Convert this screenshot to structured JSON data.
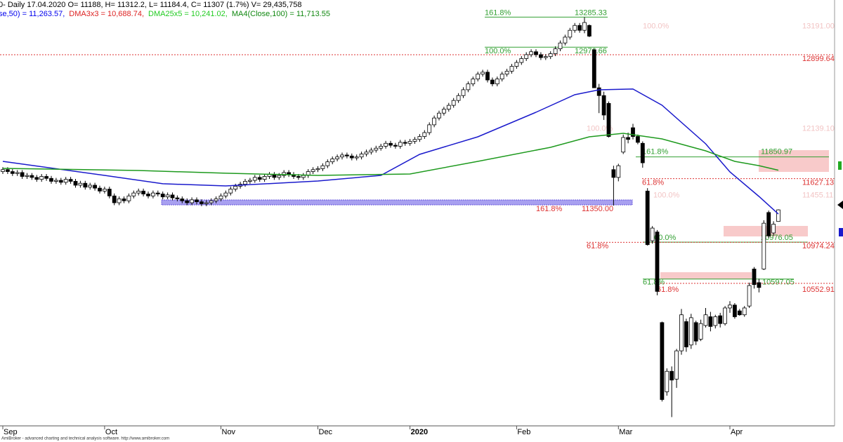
{
  "chart_data": {
    "type": "candlestick",
    "header": "0- Daily 17.04.2020 O= 11188, H= 11312.2, L= 11184.4, C= 11307 (1.7%) V= 29,435,758",
    "indicators": [
      {
        "text": "se,50) = 11,263.57,",
        "color": "#0000ee"
      },
      {
        "text": "DMA3x3 = 10,688.74,",
        "color": "#dd2222"
      },
      {
        "text": "DMA25x5 = 10,241.02,",
        "color": "#22cc22"
      },
      {
        "text": "MA4(Close,100) = 11,713.55",
        "color": "#118811"
      }
    ],
    "footer": "AmiBroker - advanced charting and technical analysis software. http://www.amibroker.com",
    "ylim": [
      9090,
      13461
    ],
    "xlim": [
      -0.6,
      173
    ],
    "xticks": [
      {
        "value": 0,
        "label": "Sep"
      },
      {
        "value": 21,
        "label": "Oct"
      },
      {
        "value": 45,
        "label": "Nov"
      },
      {
        "value": 65,
        "label": "Dec"
      },
      {
        "value": 84,
        "label": "2020"
      },
      {
        "value": 106,
        "label": "Feb"
      },
      {
        "value": 127,
        "label": "Mar"
      },
      {
        "value": 150,
        "label": "Apr"
      }
    ],
    "up_color": "#ffffff",
    "down_color": "#000000",
    "open": [
      11700,
      11720,
      11700,
      11680,
      11690,
      11650,
      11660,
      11640,
      11620,
      11650,
      11630,
      11600,
      11610,
      11590,
      11620,
      11600,
      11560,
      11580,
      11540,
      11560,
      11530,
      11500,
      11520,
      11450,
      11380,
      11420,
      11400,
      11450,
      11480,
      11500,
      11470,
      11450,
      11480,
      11470,
      11440,
      11460,
      11430,
      11420,
      11400,
      11380,
      11410,
      11390,
      11370,
      11380,
      11400,
      11420,
      11450,
      11480,
      11520,
      11550,
      11570,
      11600,
      11610,
      11640,
      11620,
      11650,
      11670,
      11640,
      11660,
      11690,
      11670,
      11650,
      11640,
      11660,
      11700,
      11720,
      11730,
      11760,
      11800,
      11830,
      11850,
      11870,
      11860,
      11840,
      11850,
      11880,
      11900,
      11920,
      11940,
      11960,
      11990,
      11970,
      11960,
      12000,
      11990,
      12010,
      12030,
      12060,
      12100,
      12180,
      12250,
      12300,
      12340,
      12380,
      12430,
      12480,
      12540,
      12600,
      12650,
      12700,
      12720,
      12640,
      12600,
      12650,
      12700,
      12730,
      12780,
      12820,
      12860,
      12900,
      12930,
      12900,
      12870,
      12880,
      12910,
      12960,
      13020,
      13080,
      13150,
      13200,
      13150,
      13200,
      12950,
      12560,
      12480,
      12400,
      11720,
      11640,
      11900,
      12050,
      12150,
      12060,
      11990,
      11500,
      10990,
      11080,
      10150,
      9440,
      9650,
      9570,
      9860,
      10160,
      9920,
      10150,
      9980,
      10120,
      10210,
      10120,
      10220,
      10140,
      10300,
      10330,
      10270,
      10230,
      10320,
      10700,
      10560,
      10700,
      11280,
      11070,
      11188
    ],
    "high": [
      11745,
      11745,
      11725,
      11715,
      11715,
      11685,
      11685,
      11665,
      11675,
      11675,
      11655,
      11635,
      11635,
      11645,
      11645,
      11625,
      11605,
      11605,
      11585,
      11585,
      11555,
      11545,
      11545,
      11475,
      11445,
      11445,
      11475,
      11505,
      11525,
      11525,
      11495,
      11505,
      11505,
      11495,
      11485,
      11485,
      11455,
      11445,
      11425,
      11435,
      11435,
      11415,
      11405,
      11425,
      11445,
      11475,
      11505,
      11545,
      11575,
      11595,
      11625,
      11635,
      11665,
      11665,
      11675,
      11695,
      11695,
      11685,
      11715,
      11715,
      11695,
      11675,
      11685,
      11725,
      11745,
      11755,
      11785,
      11825,
      11855,
      11875,
      11895,
      11895,
      11885,
      11875,
      11905,
      11925,
      11945,
      11965,
      11985,
      12015,
      12015,
      11995,
      12025,
      12025,
      12035,
      12055,
      12085,
      12125,
      12205,
      12275,
      12325,
      12365,
      12405,
      12455,
      12505,
      12565,
      12625,
      12675,
      12725,
      12745,
      12745,
      12665,
      12675,
      12725,
      12755,
      12805,
      12845,
      12885,
      12925,
      12955,
      12955,
      12925,
      12905,
      12935,
      12985,
      13045,
      13105,
      13175,
      13225,
      13225,
      13285,
      13210,
      12960,
      12600,
      12520,
      12420,
      11760,
      11780,
      12080,
      12100,
      12190,
      12080,
      12010,
      11530,
      11140,
      11100,
      10160,
      9680,
      9700,
      9880,
      10290,
      10190,
      10240,
      10170,
      10180,
      10300,
      10260,
      10230,
      10250,
      10320,
      10370,
      10350,
      10290,
      10320,
      10560,
      10720,
      10600,
      11200,
      11300,
      11190,
      11312.2
    ],
    "low": [
      11675,
      11675,
      11655,
      11655,
      11625,
      11625,
      11615,
      11595,
      11595,
      11605,
      11575,
      11575,
      11565,
      11565,
      11575,
      11535,
      11535,
      11515,
      11515,
      11505,
      11475,
      11475,
      11425,
      11355,
      11355,
      11375,
      11375,
      11425,
      11455,
      11445,
      11425,
      11425,
      11445,
      11415,
      11415,
      11405,
      11395,
      11375,
      11355,
      11355,
      11365,
      11345,
      11345,
      11355,
      11375,
      11395,
      11425,
      11455,
      11495,
      11525,
      11545,
      11575,
      11585,
      11595,
      11595,
      11625,
      11615,
      11615,
      11635,
      11645,
      11625,
      11615,
      11615,
      11635,
      11675,
      11695,
      11705,
      11735,
      11775,
      11805,
      11825,
      11835,
      11815,
      11815,
      11825,
      11855,
      11875,
      11895,
      11915,
      11935,
      11945,
      11935,
      11935,
      11965,
      11965,
      11985,
      12005,
      12035,
      12075,
      12155,
      12225,
      12275,
      12315,
      12355,
      12405,
      12455,
      12515,
      12575,
      12625,
      12675,
      12615,
      12575,
      12575,
      12625,
      12675,
      12705,
      12755,
      12795,
      12835,
      12875,
      12875,
      12845,
      12845,
      12855,
      12885,
      12935,
      12995,
      13055,
      13125,
      13125,
      13120,
      13080,
      12560,
      12300,
      12230,
      12050,
      11350,
      11600,
      11880,
      11990,
      12030,
      11980,
      11740,
      10940,
      10960,
      10430,
      9340,
      9400,
      9180,
      9480,
      9820,
      9850,
      9880,
      9920,
      9960,
      10100,
      10060,
      10090,
      10100,
      10120,
      10250,
      10190,
      10220,
      10210,
      10300,
      10500,
      10460,
      10690,
      11020,
      11040,
      11184.4
    ],
    "close": [
      11720,
      11700,
      11680,
      11690,
      11650,
      11660,
      11640,
      11620,
      11650,
      11630,
      11600,
      11610,
      11590,
      11620,
      11600,
      11560,
      11580,
      11540,
      11560,
      11530,
      11500,
      11520,
      11450,
      11380,
      11420,
      11400,
      11450,
      11480,
      11500,
      11470,
      11450,
      11480,
      11470,
      11440,
      11460,
      11430,
      11420,
      11400,
      11380,
      11410,
      11390,
      11370,
      11380,
      11400,
      11420,
      11450,
      11480,
      11520,
      11550,
      11570,
      11600,
      11610,
      11640,
      11620,
      11650,
      11670,
      11640,
      11660,
      11690,
      11670,
      11650,
      11640,
      11660,
      11700,
      11720,
      11730,
      11760,
      11800,
      11830,
      11850,
      11870,
      11860,
      11840,
      11850,
      11880,
      11900,
      11920,
      11940,
      11960,
      11990,
      11970,
      11960,
      12000,
      11990,
      12010,
      12030,
      12060,
      12100,
      12180,
      12250,
      12300,
      12340,
      12380,
      12430,
      12480,
      12540,
      12600,
      12650,
      12700,
      12720,
      12640,
      12600,
      12650,
      12700,
      12730,
      12780,
      12820,
      12860,
      12900,
      12930,
      12900,
      12870,
      12880,
      12910,
      12960,
      13020,
      13080,
      13150,
      13200,
      13150,
      13230,
      13090,
      12560,
      12480,
      12280,
      12060,
      11640,
      11760,
      12050,
      12030,
      12060,
      12000,
      11790,
      10950,
      11120,
      10470,
      9360,
      9650,
      9560,
      9860,
      10230,
      9900,
      10200,
      9960,
      10140,
      10230,
      10110,
      10210,
      10140,
      10300,
      10330,
      10210,
      10230,
      10300,
      10530,
      10540,
      10510,
      11170,
      11040,
      11160,
      11307
    ],
    "series": [
      {
        "color": "#1a1acc",
        "x": [
          0,
          21,
          33,
          46,
          65,
          78,
          86,
          98,
          110,
          118,
          123,
          130,
          136,
          145,
          150,
          156,
          160
        ],
        "values": [
          11805,
          11661,
          11575,
          11553,
          11603,
          11661,
          11877,
          12057,
          12309,
          12489,
          12539,
          12547,
          12381,
          11985,
          11697,
          11445,
          11264
        ]
      },
      {
        "color": "#1e9a1e",
        "x": [
          0,
          28,
          46,
          65,
          84,
          98,
          113,
          121,
          128,
          136,
          145,
          151,
          156,
          160
        ],
        "values": [
          11733,
          11711,
          11683,
          11661,
          11675,
          11805,
          11949,
          12057,
          12093,
          12035,
          11913,
          11805,
          11761,
          11714
        ]
      }
    ],
    "levels": [
      {
        "pct": "161.8%",
        "value": 13285.33
      },
      {
        "pct": "100.0%",
        "value": 12976.66
      },
      {
        "value": 12899.64
      },
      {
        "pct": "100.0%",
        "value": 13191,
        "label": "13191.00"
      },
      {
        "pct": "100.0%",
        "value": 12139.1,
        "label": "12139.10"
      },
      {
        "pct": "161.8%",
        "value": 11850.97
      },
      {
        "pct": "61.8%",
        "value": 11627.13
      },
      {
        "pct": "100.0%",
        "value": 11455.11
      },
      {
        "pct": "161.8%",
        "value": 11350,
        "label": "11350.00"
      },
      {
        "pct": "100.0%",
        "value": 10976.05
      },
      {
        "pct": "61.8%",
        "value": 10974.24
      },
      {
        "pct": "61.8%",
        "value": 10597.05
      },
      {
        "pct": "61.8%",
        "value": 10552.91
      }
    ]
  }
}
